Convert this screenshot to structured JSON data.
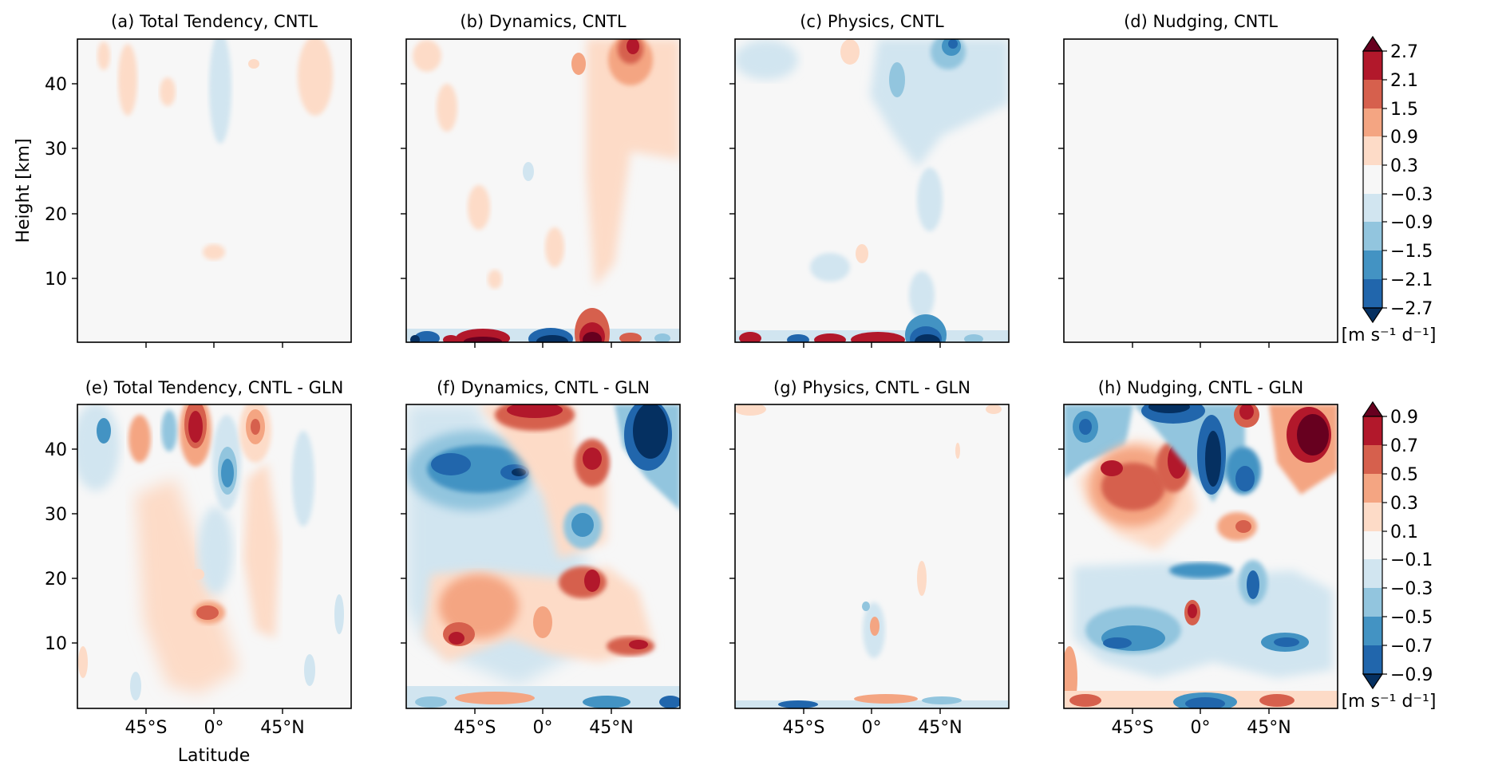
{
  "figure": {
    "ylabel": "Height [km]",
    "xlabel": "Latitude",
    "yticks": [
      "10",
      "20",
      "30",
      "40"
    ],
    "xticks": [
      "45°S",
      "0°",
      "45°N"
    ]
  },
  "colorbars": [
    {
      "levels": [
        "2.7",
        "2.1",
        "1.5",
        "0.9",
        "0.3",
        "−0.3",
        "−0.9",
        "−1.5",
        "−2.1",
        "−2.7"
      ],
      "units": "[m s⁻¹ d⁻¹]"
    },
    {
      "levels": [
        "0.9",
        "0.7",
        "0.5",
        "0.3",
        "0.1",
        "−0.1",
        "−0.3",
        "−0.5",
        "−0.7",
        "−0.9"
      ],
      "units": "[m s⁻¹ d⁻¹]"
    }
  ],
  "palette": [
    "#67001f",
    "#b2182b",
    "#d6604d",
    "#f4a582",
    "#fddbc7",
    "#f7f7f7",
    "#d1e5f0",
    "#92c5de",
    "#4393c3",
    "#2166ac",
    "#053061"
  ],
  "chart_data": [
    {
      "type": "heatmap",
      "title": "(a) Total Tendency, CNTL",
      "x": "latitude",
      "y": "height_km",
      "ylim": [
        0,
        47
      ],
      "xlim": [
        -90,
        90
      ],
      "xticks": [
        -45,
        0,
        45
      ],
      "yticks": [
        10,
        20,
        30,
        40
      ],
      "colorbar_levels": [
        -2.7,
        -2.1,
        -1.5,
        -0.9,
        -0.3,
        0.3,
        0.9,
        1.5,
        2.1,
        2.7
      ]
    },
    {
      "type": "heatmap",
      "title": "(b) Dynamics, CNTL",
      "x": "latitude",
      "y": "height_km",
      "ylim": [
        0,
        47
      ],
      "xlim": [
        -90,
        90
      ],
      "xticks": [
        -45,
        0,
        45
      ],
      "yticks": [
        10,
        20,
        30,
        40
      ],
      "colorbar_levels": [
        -2.7,
        -2.1,
        -1.5,
        -0.9,
        -0.3,
        0.3,
        0.9,
        1.5,
        2.1,
        2.7
      ]
    },
    {
      "type": "heatmap",
      "title": "(c) Physics, CNTL",
      "x": "latitude",
      "y": "height_km",
      "ylim": [
        0,
        47
      ],
      "xlim": [
        -90,
        90
      ],
      "xticks": [
        -45,
        0,
        45
      ],
      "yticks": [
        10,
        20,
        30,
        40
      ],
      "colorbar_levels": [
        -2.7,
        -2.1,
        -1.5,
        -0.9,
        -0.3,
        0.3,
        0.9,
        1.5,
        2.1,
        2.7
      ]
    },
    {
      "type": "heatmap",
      "title": "(d) Nudging, CNTL",
      "x": "latitude",
      "y": "height_km",
      "ylim": [
        0,
        47
      ],
      "xlim": [
        -90,
        90
      ],
      "xticks": [
        -45,
        0,
        45
      ],
      "yticks": [
        10,
        20,
        30,
        40
      ],
      "colorbar_levels": [
        -2.7,
        -2.1,
        -1.5,
        -0.9,
        -0.3,
        0.3,
        0.9,
        1.5,
        2.1,
        2.7
      ]
    },
    {
      "type": "heatmap",
      "title": "(e) Total Tendency, CNTL - GLN",
      "x": "latitude",
      "y": "height_km",
      "ylim": [
        0,
        47
      ],
      "xlim": [
        -90,
        90
      ],
      "xticks": [
        -45,
        0,
        45
      ],
      "yticks": [
        10,
        20,
        30,
        40
      ],
      "colorbar_levels": [
        -0.9,
        -0.7,
        -0.5,
        -0.3,
        -0.1,
        0.1,
        0.3,
        0.5,
        0.7,
        0.9
      ]
    },
    {
      "type": "heatmap",
      "title": "(f) Dynamics, CNTL - GLN",
      "x": "latitude",
      "y": "height_km",
      "ylim": [
        0,
        47
      ],
      "xlim": [
        -90,
        90
      ],
      "xticks": [
        -45,
        0,
        45
      ],
      "yticks": [
        10,
        20,
        30,
        40
      ],
      "colorbar_levels": [
        -0.9,
        -0.7,
        -0.5,
        -0.3,
        -0.1,
        0.1,
        0.3,
        0.5,
        0.7,
        0.9
      ]
    },
    {
      "type": "heatmap",
      "title": "(g) Physics, CNTL - GLN",
      "x": "latitude",
      "y": "height_km",
      "ylim": [
        0,
        47
      ],
      "xlim": [
        -90,
        90
      ],
      "xticks": [
        -45,
        0,
        45
      ],
      "yticks": [
        10,
        20,
        30,
        40
      ],
      "colorbar_levels": [
        -0.9,
        -0.7,
        -0.5,
        -0.3,
        -0.1,
        0.1,
        0.3,
        0.5,
        0.7,
        0.9
      ]
    },
    {
      "type": "heatmap",
      "title": "(h) Nudging, CNTL - GLN",
      "x": "latitude",
      "y": "height_km",
      "ylim": [
        0,
        47
      ],
      "xlim": [
        -90,
        90
      ],
      "xticks": [
        -45,
        0,
        45
      ],
      "yticks": [
        10,
        20,
        30,
        40
      ],
      "colorbar_levels": [
        -0.9,
        -0.7,
        -0.5,
        -0.3,
        -0.1,
        0.1,
        0.3,
        0.5,
        0.7,
        0.9
      ]
    }
  ]
}
